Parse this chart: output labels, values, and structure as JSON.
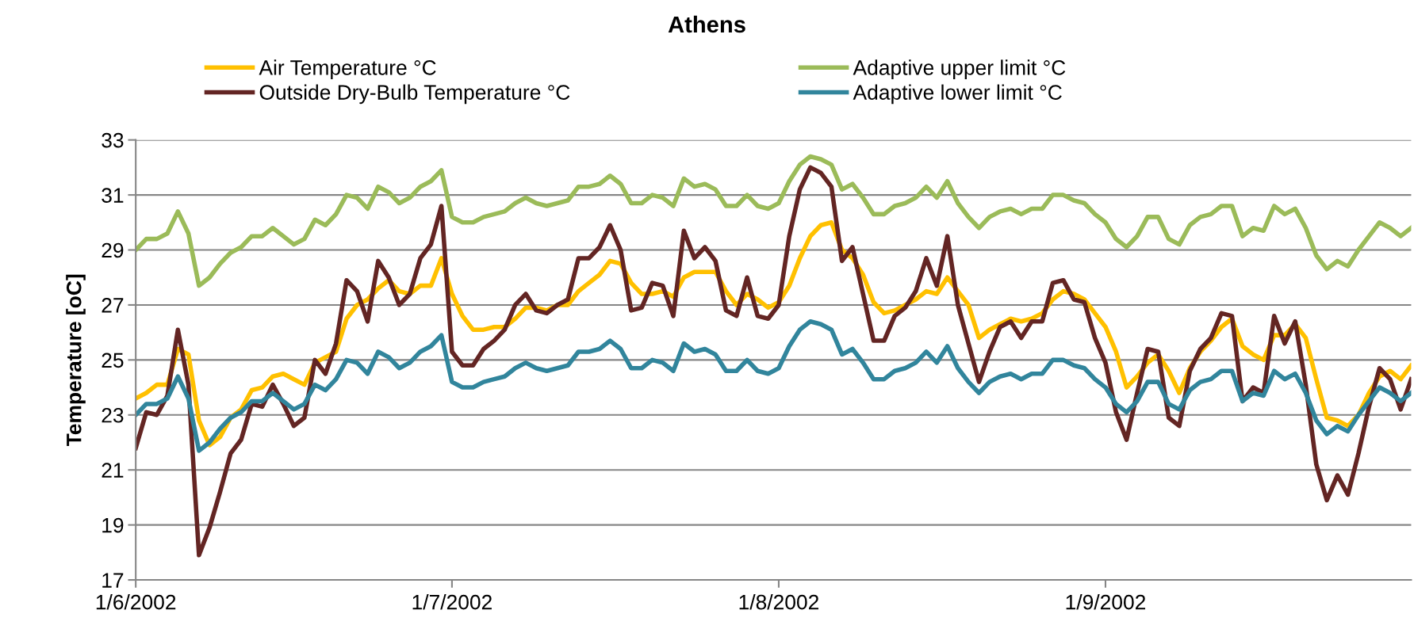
{
  "chart_data": {
    "type": "line",
    "title": "Athens",
    "ylabel": "Temperature [oC]",
    "x": [
      "2002-06-01",
      "2002-06-02",
      "2002-06-03",
      "2002-06-04",
      "2002-06-05",
      "2002-06-06",
      "2002-06-07",
      "2002-06-08",
      "2002-06-09",
      "2002-06-10",
      "2002-06-11",
      "2002-06-12",
      "2002-06-13",
      "2002-06-14",
      "2002-06-15",
      "2002-06-16",
      "2002-06-17",
      "2002-06-18",
      "2002-06-19",
      "2002-06-20",
      "2002-06-21",
      "2002-06-22",
      "2002-06-23",
      "2002-06-24",
      "2002-06-25",
      "2002-06-26",
      "2002-06-27",
      "2002-06-28",
      "2002-06-29",
      "2002-06-30",
      "2002-07-01",
      "2002-07-02",
      "2002-07-03",
      "2002-07-04",
      "2002-07-05",
      "2002-07-06",
      "2002-07-07",
      "2002-07-08",
      "2002-07-09",
      "2002-07-10",
      "2002-07-11",
      "2002-07-12",
      "2002-07-13",
      "2002-07-14",
      "2002-07-15",
      "2002-07-16",
      "2002-07-17",
      "2002-07-18",
      "2002-07-19",
      "2002-07-20",
      "2002-07-21",
      "2002-07-22",
      "2002-07-23",
      "2002-07-24",
      "2002-07-25",
      "2002-07-26",
      "2002-07-27",
      "2002-07-28",
      "2002-07-29",
      "2002-07-30",
      "2002-07-31",
      "2002-08-01",
      "2002-08-02",
      "2002-08-03",
      "2002-08-04",
      "2002-08-05",
      "2002-08-06",
      "2002-08-07",
      "2002-08-08",
      "2002-08-09",
      "2002-08-10",
      "2002-08-11",
      "2002-08-12",
      "2002-08-13",
      "2002-08-14",
      "2002-08-15",
      "2002-08-16",
      "2002-08-17",
      "2002-08-18",
      "2002-08-19",
      "2002-08-20",
      "2002-08-21",
      "2002-08-22",
      "2002-08-23",
      "2002-08-24",
      "2002-08-25",
      "2002-08-26",
      "2002-08-27",
      "2002-08-28",
      "2002-08-29",
      "2002-08-30",
      "2002-08-31",
      "2002-09-01",
      "2002-09-02",
      "2002-09-03",
      "2002-09-04",
      "2002-09-05",
      "2002-09-06",
      "2002-09-07",
      "2002-09-08",
      "2002-09-09",
      "2002-09-10",
      "2002-09-11",
      "2002-09-12",
      "2002-09-13",
      "2002-09-14",
      "2002-09-15",
      "2002-09-16",
      "2002-09-17",
      "2002-09-18",
      "2002-09-19",
      "2002-09-20",
      "2002-09-21",
      "2002-09-22",
      "2002-09-23",
      "2002-09-24",
      "2002-09-25",
      "2002-09-26",
      "2002-09-27",
      "2002-09-28",
      "2002-09-29",
      "2002-09-30"
    ],
    "series": [
      {
        "name": "Air Temperature °C",
        "color": "#ffc000",
        "values": [
          23.6,
          23.8,
          24.1,
          24.1,
          25.4,
          25.2,
          22.8,
          21.9,
          22.2,
          22.9,
          23.2,
          23.9,
          24.0,
          24.4,
          24.5,
          24.3,
          24.1,
          24.9,
          25.1,
          25.3,
          26.5,
          27.0,
          27.2,
          27.6,
          27.9,
          27.5,
          27.4,
          27.7,
          27.7,
          28.7,
          27.4,
          26.6,
          26.1,
          26.1,
          26.2,
          26.2,
          26.5,
          26.9,
          26.9,
          26.8,
          27.0,
          27.0,
          27.5,
          27.8,
          28.1,
          28.6,
          28.5,
          27.8,
          27.4,
          27.4,
          27.5,
          27.3,
          28.0,
          28.2,
          28.2,
          28.2,
          27.5,
          27.0,
          27.4,
          27.2,
          26.9,
          27.1,
          27.7,
          28.7,
          29.5,
          29.9,
          30.0,
          29.0,
          28.7,
          28.1,
          27.1,
          26.7,
          26.8,
          27.0,
          27.2,
          27.5,
          27.4,
          28.0,
          27.5,
          27.0,
          25.8,
          26.1,
          26.3,
          26.5,
          26.4,
          26.5,
          26.7,
          27.2,
          27.5,
          27.4,
          27.2,
          26.7,
          26.2,
          25.3,
          24.0,
          24.4,
          24.9,
          25.2,
          24.6,
          23.8,
          24.7,
          25.3,
          25.7,
          26.2,
          26.5,
          25.5,
          25.2,
          25.0,
          25.9,
          25.9,
          26.3,
          25.8,
          24.3,
          22.9,
          22.8,
          22.6,
          23.0,
          23.8,
          24.4,
          24.6,
          24.3,
          24.8
        ]
      },
      {
        "name": "Outside Dry-Bulb Temperature °C",
        "color": "#632523",
        "values": [
          21.8,
          23.1,
          23.0,
          23.7,
          26.1,
          24.1,
          17.9,
          18.9,
          20.2,
          21.6,
          22.1,
          23.4,
          23.3,
          24.1,
          23.4,
          22.6,
          22.9,
          25.0,
          24.5,
          25.6,
          27.9,
          27.5,
          26.4,
          28.6,
          28.0,
          27.0,
          27.4,
          28.7,
          29.2,
          30.6,
          25.3,
          24.8,
          24.8,
          25.4,
          25.7,
          26.1,
          27.0,
          27.4,
          26.8,
          26.7,
          27.0,
          27.2,
          28.7,
          28.7,
          29.1,
          29.9,
          29.0,
          26.8,
          26.9,
          27.8,
          27.7,
          26.6,
          29.7,
          28.7,
          29.1,
          28.6,
          26.8,
          26.6,
          28.0,
          26.6,
          26.5,
          27.0,
          29.5,
          31.2,
          32.0,
          31.8,
          31.3,
          28.6,
          29.1,
          27.4,
          25.7,
          25.7,
          26.6,
          26.9,
          27.5,
          28.7,
          27.7,
          29.5,
          27.0,
          25.6,
          24.2,
          25.3,
          26.2,
          26.4,
          25.8,
          26.4,
          26.4,
          27.8,
          27.9,
          27.2,
          27.1,
          25.8,
          24.9,
          23.1,
          22.1,
          23.8,
          25.4,
          25.3,
          22.9,
          22.6,
          24.6,
          25.4,
          25.8,
          26.7,
          26.6,
          23.5,
          24.0,
          23.8,
          26.6,
          25.6,
          26.4,
          24.1,
          21.2,
          19.9,
          20.8,
          20.1,
          21.6,
          23.3,
          24.7,
          24.3,
          23.2,
          24.3
        ]
      },
      {
        "name": "Adaptive upper limit °C",
        "color": "#9bbb59",
        "values": [
          29.0,
          29.4,
          29.4,
          29.6,
          30.4,
          29.6,
          27.7,
          28.0,
          28.5,
          28.9,
          29.1,
          29.5,
          29.5,
          29.8,
          29.5,
          29.2,
          29.4,
          30.1,
          29.9,
          30.3,
          31.0,
          30.9,
          30.5,
          31.3,
          31.1,
          30.7,
          30.9,
          31.3,
          31.5,
          31.9,
          30.2,
          30.0,
          30.0,
          30.2,
          30.3,
          30.4,
          30.7,
          30.9,
          30.7,
          30.6,
          30.7,
          30.8,
          31.3,
          31.3,
          31.4,
          31.7,
          31.4,
          30.7,
          30.7,
          31.0,
          30.9,
          30.6,
          31.6,
          31.3,
          31.4,
          31.2,
          30.6,
          30.6,
          31.0,
          30.6,
          30.5,
          30.7,
          31.5,
          32.1,
          32.4,
          32.3,
          32.1,
          31.2,
          31.4,
          30.9,
          30.3,
          30.3,
          30.6,
          30.7,
          30.9,
          31.3,
          30.9,
          31.5,
          30.7,
          30.2,
          29.8,
          30.2,
          30.4,
          30.5,
          30.3,
          30.5,
          30.5,
          31.0,
          31.0,
          30.8,
          30.7,
          30.3,
          30.0,
          29.4,
          29.1,
          29.5,
          30.2,
          30.2,
          29.4,
          29.2,
          29.9,
          30.2,
          30.3,
          30.6,
          30.6,
          29.5,
          29.8,
          29.7,
          30.6,
          30.3,
          30.5,
          29.8,
          28.8,
          28.3,
          28.6,
          28.4,
          29.0,
          29.5,
          30.0,
          29.8,
          29.5,
          29.8
        ]
      },
      {
        "name": "Adaptive lower limit °C",
        "color": "#31859c",
        "values": [
          23.0,
          23.4,
          23.4,
          23.6,
          24.4,
          23.6,
          21.7,
          22.0,
          22.5,
          22.9,
          23.1,
          23.5,
          23.5,
          23.8,
          23.5,
          23.2,
          23.4,
          24.1,
          23.9,
          24.3,
          25.0,
          24.9,
          24.5,
          25.3,
          25.1,
          24.7,
          24.9,
          25.3,
          25.5,
          25.9,
          24.2,
          24.0,
          24.0,
          24.2,
          24.3,
          24.4,
          24.7,
          24.9,
          24.7,
          24.6,
          24.7,
          24.8,
          25.3,
          25.3,
          25.4,
          25.7,
          25.4,
          24.7,
          24.7,
          25.0,
          24.9,
          24.6,
          25.6,
          25.3,
          25.4,
          25.2,
          24.6,
          24.6,
          25.0,
          24.6,
          24.5,
          24.7,
          25.5,
          26.1,
          26.4,
          26.3,
          26.1,
          25.2,
          25.4,
          24.9,
          24.3,
          24.3,
          24.6,
          24.7,
          24.9,
          25.3,
          24.9,
          25.5,
          24.7,
          24.2,
          23.8,
          24.2,
          24.4,
          24.5,
          24.3,
          24.5,
          24.5,
          25.0,
          25.0,
          24.8,
          24.7,
          24.3,
          24.0,
          23.4,
          23.1,
          23.5,
          24.2,
          24.2,
          23.4,
          23.2,
          23.9,
          24.2,
          24.3,
          24.6,
          24.6,
          23.5,
          23.8,
          23.7,
          24.6,
          24.3,
          24.5,
          23.8,
          22.8,
          22.3,
          22.6,
          22.4,
          23.0,
          23.5,
          24.0,
          23.8,
          23.5,
          23.8
        ]
      }
    ],
    "xlim": [
      "2002-06-01",
      "2002-09-30"
    ],
    "xticks": [
      {
        "value": "2002-06-01",
        "label": "1/6/2002"
      },
      {
        "value": "2002-07-01",
        "label": "1/7/2002"
      },
      {
        "value": "2002-08-01",
        "label": "1/8/2002"
      },
      {
        "value": "2002-09-01",
        "label": "1/9/2002"
      }
    ],
    "ylim": [
      17,
      33
    ],
    "yticks": [
      17,
      19,
      21,
      23,
      25,
      27,
      29,
      31,
      33
    ],
    "grid": "y",
    "legend": "top",
    "marker": "none",
    "line_style": "solid"
  }
}
